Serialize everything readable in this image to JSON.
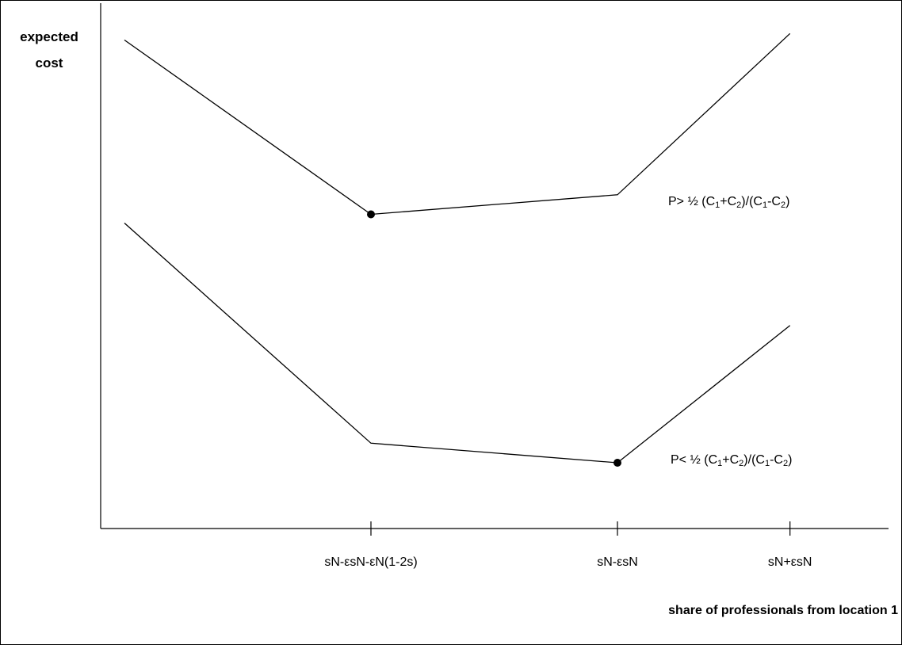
{
  "chart_data": {
    "type": "line",
    "ylabel_line1": "expected",
    "ylabel_line2": "cost",
    "xlabel": "share of professionals from location 1",
    "categories": [
      "sN-εsN-εN(1-2s)",
      "sN-εsN",
      "sN+εsN"
    ],
    "series": [
      {
        "name_parts": [
          "P> ½ (C",
          "1",
          "+C",
          "2",
          ")/(C",
          "1",
          "-C",
          "2",
          ")"
        ],
        "x": [
          -1.0,
          0.0,
          1.0,
          1.7
        ],
        "y": [
          9.3,
          5.3,
          5.75,
          9.45
        ],
        "marker_index": 1
      },
      {
        "name_parts": [
          "P< ½ (C",
          "1",
          "+C",
          "2",
          ")/(C",
          "1",
          "-C",
          "2",
          ")"
        ],
        "x": [
          -1.0,
          0.0,
          1.0,
          1.7
        ],
        "y": [
          5.1,
          0.05,
          -0.4,
          2.75
        ],
        "marker_index": 2
      }
    ],
    "grid": false,
    "legend": "inline-right",
    "colors": {
      "line": "#000000",
      "background": "#ffffff"
    }
  }
}
